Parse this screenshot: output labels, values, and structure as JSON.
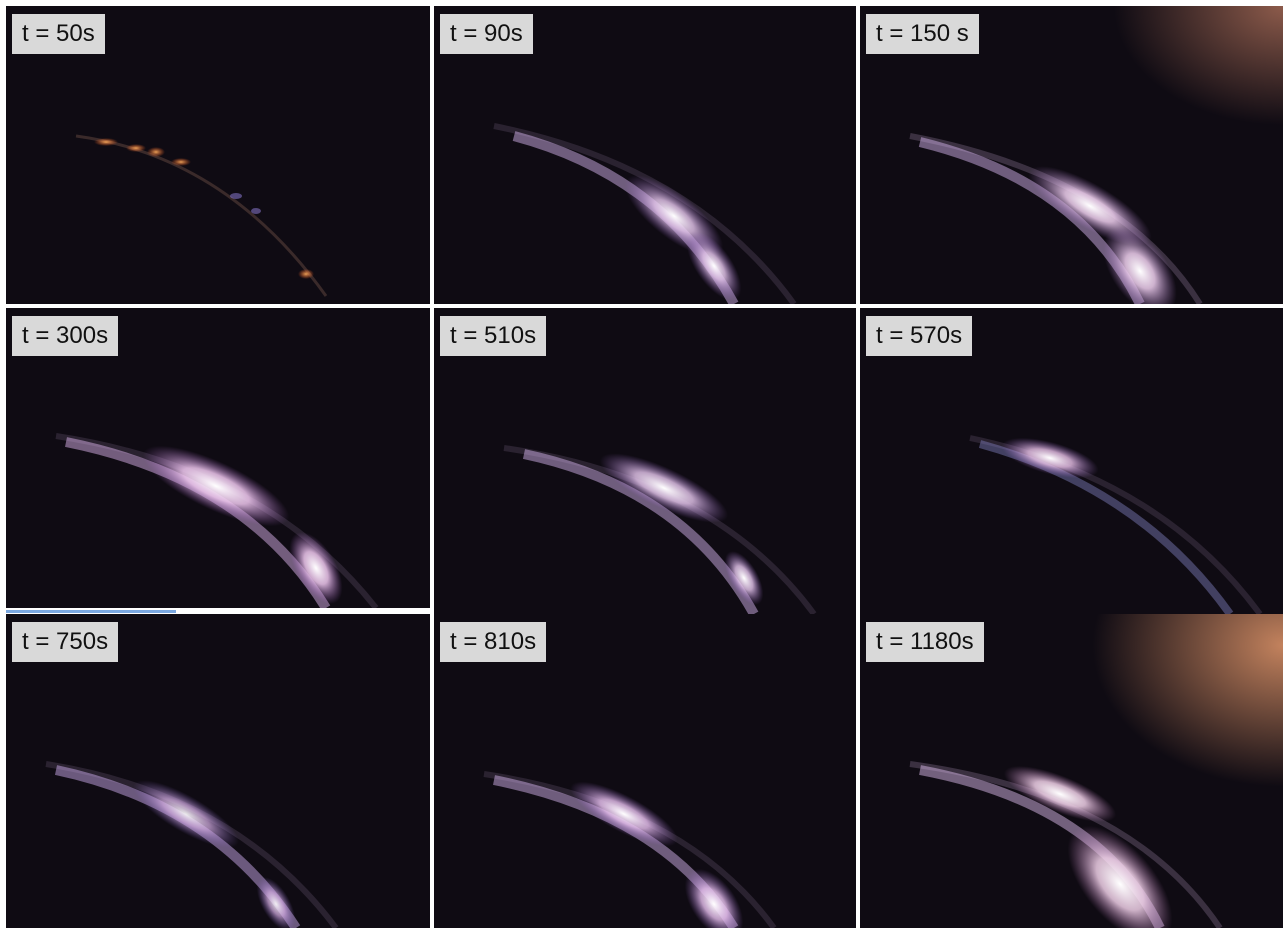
{
  "frames": [
    {
      "label": "t = 50s"
    },
    {
      "label": "t = 90s"
    },
    {
      "label": "t = 150 s"
    },
    {
      "label": "t = 300s"
    },
    {
      "label": "t = 510s"
    },
    {
      "label": "t = 570s"
    },
    {
      "label": "t = 750s"
    },
    {
      "label": "t = 810s"
    },
    {
      "label": "t = 1180s"
    }
  ]
}
